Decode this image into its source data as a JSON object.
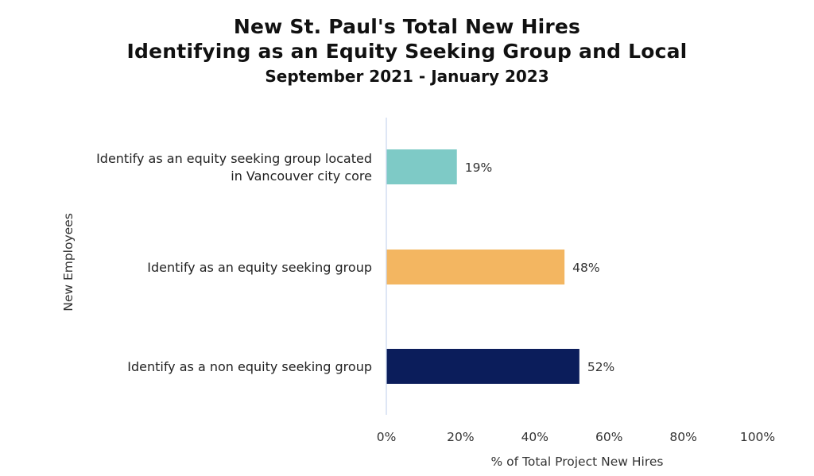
{
  "chart_data": {
    "type": "bar",
    "orientation": "horizontal",
    "title": [
      "New St. Paul's Total New Hires",
      "Identifying as an Equity Seeking Group and Local"
    ],
    "subtitle": "September 2021 - January 2023",
    "xlabel": "% of Total Project New Hires",
    "ylabel": "New Employees",
    "categories": [
      [
        "Identify as an equity seeking group located",
        "in Vancouver city core"
      ],
      [
        "Identify as an equity seeking group"
      ],
      [
        "Identify as a non equity seeking group"
      ]
    ],
    "values": [
      19,
      48,
      52
    ],
    "data_labels": [
      "19%",
      "48%",
      "52%"
    ],
    "colors": [
      "#7ecac6",
      "#f3b661",
      "#0b1d5b"
    ],
    "xlim": [
      0,
      100
    ],
    "xticks": [
      "0%",
      "20%",
      "40%",
      "60%",
      "80%",
      "100%"
    ],
    "grid": false,
    "legend": "none"
  }
}
